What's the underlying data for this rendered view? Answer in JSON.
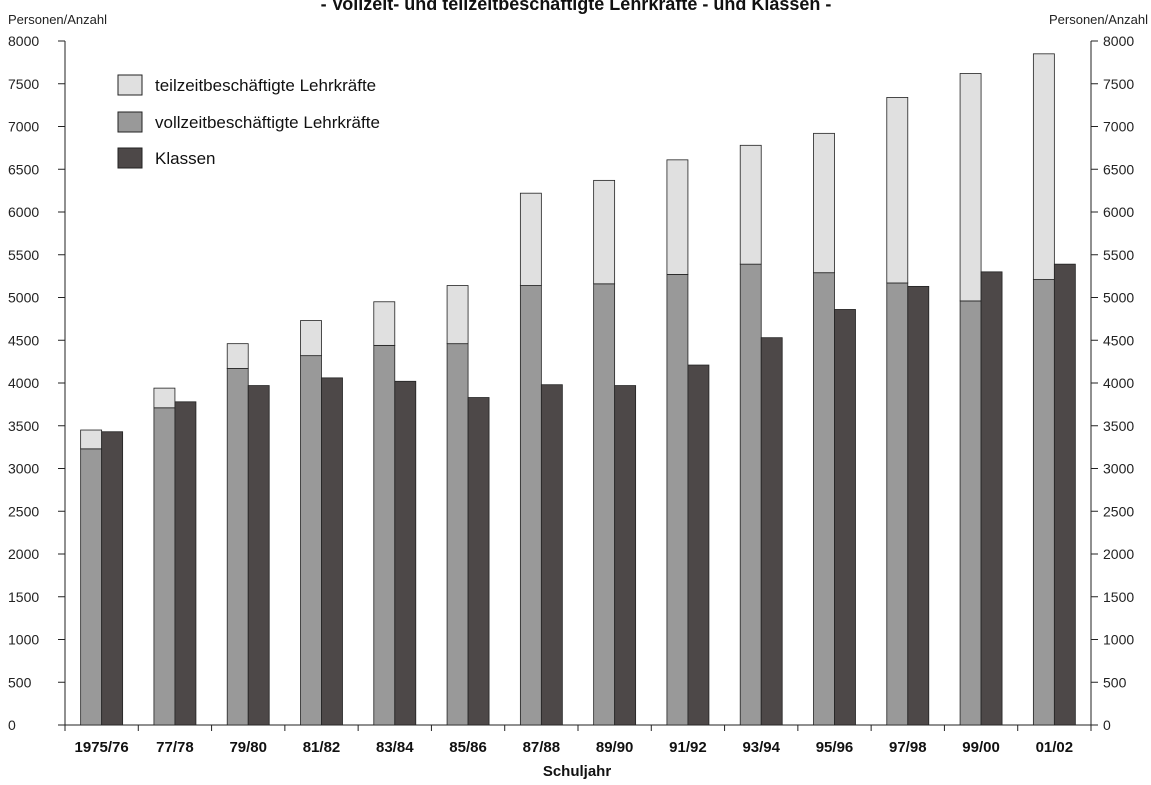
{
  "colors": {
    "part_time": "#e0e0e0",
    "full_time": "#999999",
    "classes": "#4d4848",
    "stroke": "#222222"
  },
  "chart_data": {
    "type": "bar",
    "title": "- Vollzeit- und teilzeitbeschäftigte Lehrkräfte - und Klassen -",
    "xlabel": "Schuljahr",
    "ylabel_left": "Personen/Anzahl",
    "ylabel_right": "Personen/Anzahl",
    "ylim": [
      0,
      8000
    ],
    "yticks": [
      0,
      500,
      1000,
      1500,
      2000,
      2500,
      3000,
      3500,
      4000,
      4500,
      5000,
      5500,
      6000,
      6500,
      7000,
      7500,
      8000
    ],
    "legend_position": "top-left",
    "categories": [
      "1975/76",
      "77/78",
      "79/80",
      "81/82",
      "83/84",
      "85/86",
      "87/88",
      "89/90",
      "91/92",
      "93/94",
      "95/96",
      "97/98",
      "99/00",
      "01/02"
    ],
    "series": [
      {
        "name": "teilzeitbeschäftigte Lehrkräfte",
        "stack": "teachers",
        "values": [
          220,
          230,
          290,
          410,
          510,
          680,
          1080,
          1210,
          1340,
          1390,
          1630,
          2170,
          2660,
          2640
        ]
      },
      {
        "name": "vollzeitbeschäftigte Lehrkräfte",
        "stack": "teachers",
        "values": [
          3230,
          3710,
          4170,
          4320,
          4440,
          4460,
          5140,
          5160,
          5270,
          5390,
          5290,
          5170,
          4960,
          5210
        ]
      },
      {
        "name": "Klassen",
        "stack": "classes",
        "values": [
          3430,
          3780,
          3970,
          4060,
          4020,
          3830,
          3980,
          3970,
          4210,
          4530,
          4860,
          5130,
          5300,
          5390
        ]
      }
    ]
  }
}
